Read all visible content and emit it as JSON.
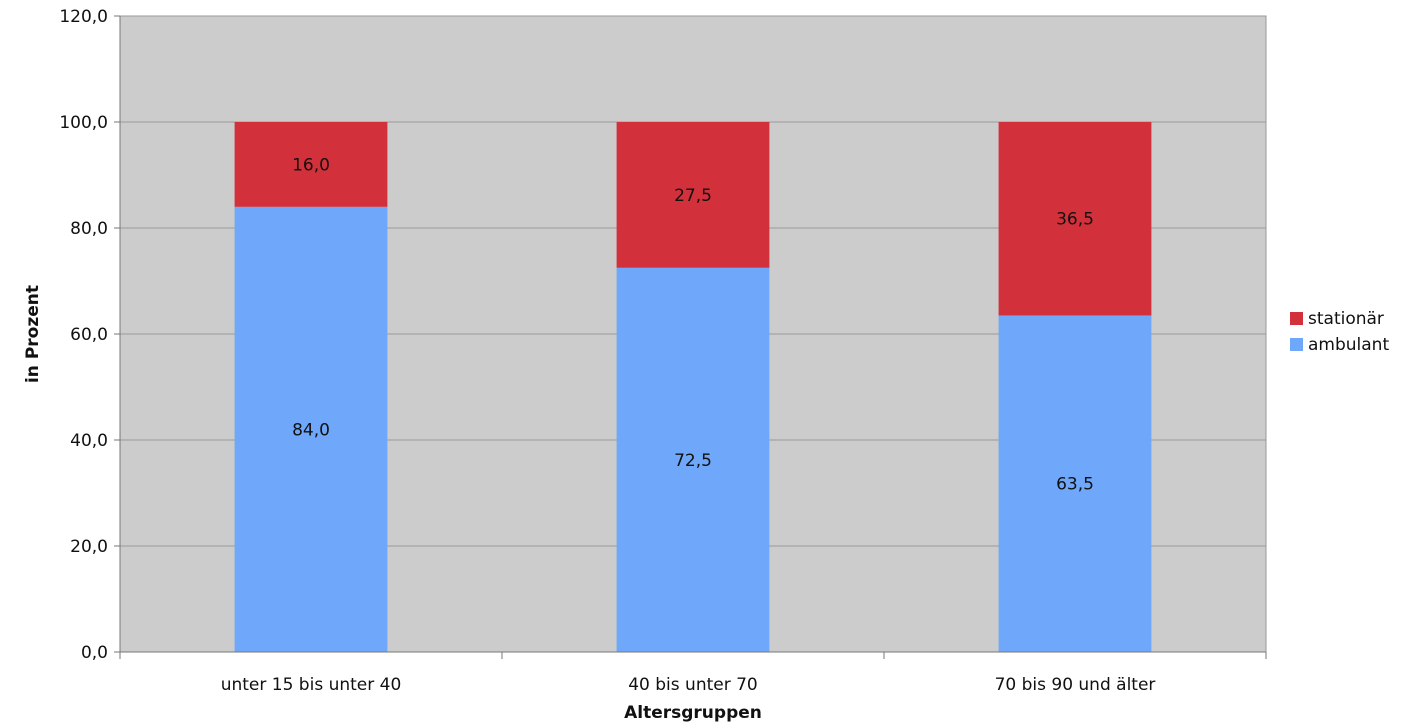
{
  "chart_data": {
    "type": "bar",
    "stacked": true,
    "categories": [
      "unter 15 bis unter 40",
      "40 bis unter 70",
      "70 bis 90 und älter"
    ],
    "series": [
      {
        "name": "ambulant",
        "values": [
          84.0,
          72.5,
          63.5
        ],
        "labels": [
          "84,0",
          "72,5",
          "63,5"
        ],
        "color": "#6fa8fa"
      },
      {
        "name": "stationär",
        "values": [
          16.0,
          27.5,
          36.5
        ],
        "labels": [
          "16,0",
          "27,5",
          "36,5"
        ],
        "color": "#d2303a"
      }
    ],
    "xlabel": "Altersgruppen",
    "ylabel": "in Prozent",
    "ylim": [
      0,
      120
    ],
    "yticks": [
      0,
      20,
      40,
      60,
      80,
      100,
      120
    ],
    "ytick_labels": [
      "0,0",
      "20,0",
      "40,0",
      "60,0",
      "80,0",
      "100,0",
      "120,0"
    ],
    "grid": true,
    "legend_position": "right",
    "legend_order": [
      "stationär",
      "ambulant"
    ],
    "plot_background": "#cccccc"
  }
}
